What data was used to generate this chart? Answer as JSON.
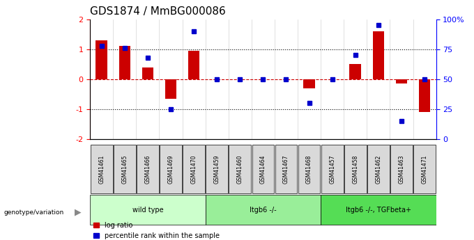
{
  "title": "GDS1874 / MmBG000086",
  "samples": [
    "GSM41461",
    "GSM41465",
    "GSM41466",
    "GSM41469",
    "GSM41470",
    "GSM41459",
    "GSM41460",
    "GSM41464",
    "GSM41467",
    "GSM41468",
    "GSM41457",
    "GSM41458",
    "GSM41462",
    "GSM41463",
    "GSM41471"
  ],
  "log_ratio": [
    1.3,
    1.1,
    0.4,
    -0.65,
    0.95,
    0.0,
    0.0,
    0.0,
    0.0,
    -0.3,
    0.0,
    0.5,
    1.6,
    -0.15,
    -1.1
  ],
  "percentile_rank": [
    78,
    76,
    68,
    25,
    90,
    50,
    50,
    50,
    50,
    30,
    50,
    70,
    95,
    15,
    50
  ],
  "groups": [
    {
      "label": "wild type",
      "start": 0,
      "end": 5,
      "color": "#ccffcc"
    },
    {
      "label": "Itgb6 -/-",
      "start": 5,
      "end": 10,
      "color": "#99ee99"
    },
    {
      "label": "Itgb6 -/-, TGFbeta+",
      "start": 10,
      "end": 15,
      "color": "#55dd55"
    }
  ],
  "ylim": [
    -2,
    2
  ],
  "y2lim": [
    0,
    100
  ],
  "bar_color": "#cc0000",
  "dot_color": "#0000cc",
  "zero_line_color": "#cc0000",
  "legend_log_ratio": "log ratio",
  "legend_percentile": "percentile rank within the sample"
}
